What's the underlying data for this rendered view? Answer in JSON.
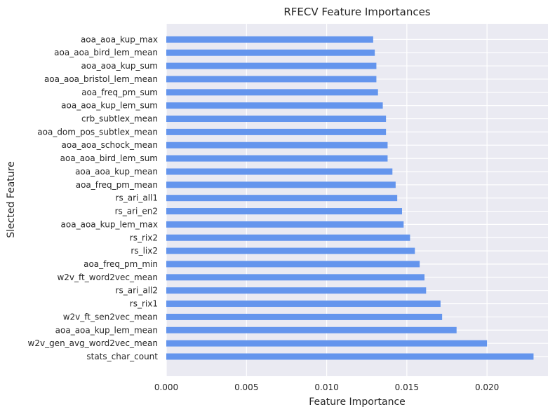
{
  "chart_data": {
    "type": "bar",
    "orientation": "horizontal",
    "title": "RFECV Feature Importances",
    "xlabel": "Feature Importance",
    "ylabel": "Slected Feature",
    "xlim": [
      0,
      0.0238
    ],
    "xticks": [
      0.0,
      0.005,
      0.01,
      0.015,
      0.02
    ],
    "xtick_labels": [
      "0.000",
      "0.005",
      "0.010",
      "0.015",
      "0.020"
    ],
    "grid": true,
    "bar_color": "#6495ED",
    "background_color": "#EAEAF2",
    "categories": [
      "stats_char_count",
      "w2v_gen_avg_word2vec_mean",
      "aoa_aoa_kup_lem_mean",
      "w2v_ft_sen2vec_mean",
      "rs_rix1",
      "rs_ari_all2",
      "w2v_ft_word2vec_mean",
      "aoa_freq_pm_min",
      "rs_lix2",
      "rs_rix2",
      "aoa_aoa_kup_lem_max",
      "rs_ari_en2",
      "rs_ari_all1",
      "aoa_freq_pm_mean",
      "aoa_aoa_kup_mean",
      "aoa_aoa_bird_lem_sum",
      "aoa_aoa_schock_mean",
      "aoa_dom_pos_subtlex_mean",
      "crb_subtlex_mean",
      "aoa_aoa_kup_lem_sum",
      "aoa_freq_pm_sum",
      "aoa_aoa_bristol_lem_mean",
      "aoa_aoa_kup_sum",
      "aoa_aoa_bird_lem_mean",
      "aoa_aoa_kup_max"
    ],
    "values": [
      0.0229,
      0.02,
      0.0181,
      0.0172,
      0.0171,
      0.0162,
      0.0161,
      0.0158,
      0.0155,
      0.0152,
      0.0148,
      0.0147,
      0.0144,
      0.0143,
      0.0141,
      0.0138,
      0.0138,
      0.0137,
      0.0137,
      0.0135,
      0.0132,
      0.0131,
      0.0131,
      0.013,
      0.0129
    ]
  }
}
